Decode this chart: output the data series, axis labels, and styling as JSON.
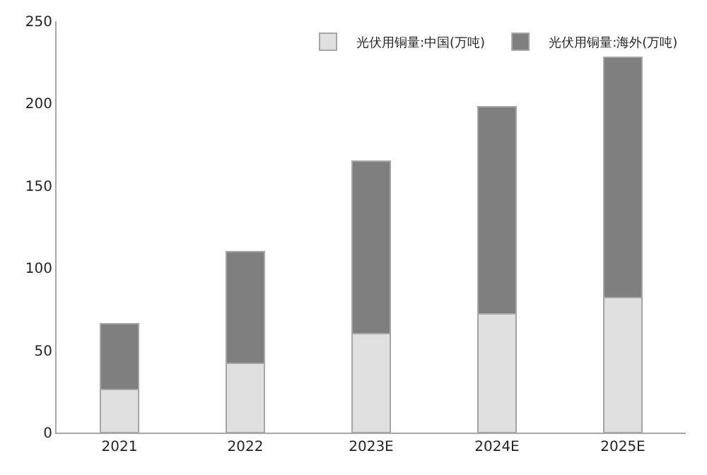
{
  "chart_data": {
    "type": "bar",
    "stacked": true,
    "categories": [
      "2021",
      "2022",
      "2023E",
      "2024E",
      "2025E"
    ],
    "series": [
      {
        "name": "光伏用铜量:中国(万吨)",
        "color": "#e0e0e0",
        "values": [
          26,
          42,
          60,
          72,
          82
        ]
      },
      {
        "name": "光伏用铜量:海外(万吨)",
        "color": "#7f7f7f",
        "values": [
          40,
          68,
          105,
          126,
          146
        ]
      }
    ],
    "ylim": [
      0,
      250
    ],
    "yticks": [
      0,
      50,
      100,
      150,
      200,
      250
    ],
    "legend": "top right"
  }
}
